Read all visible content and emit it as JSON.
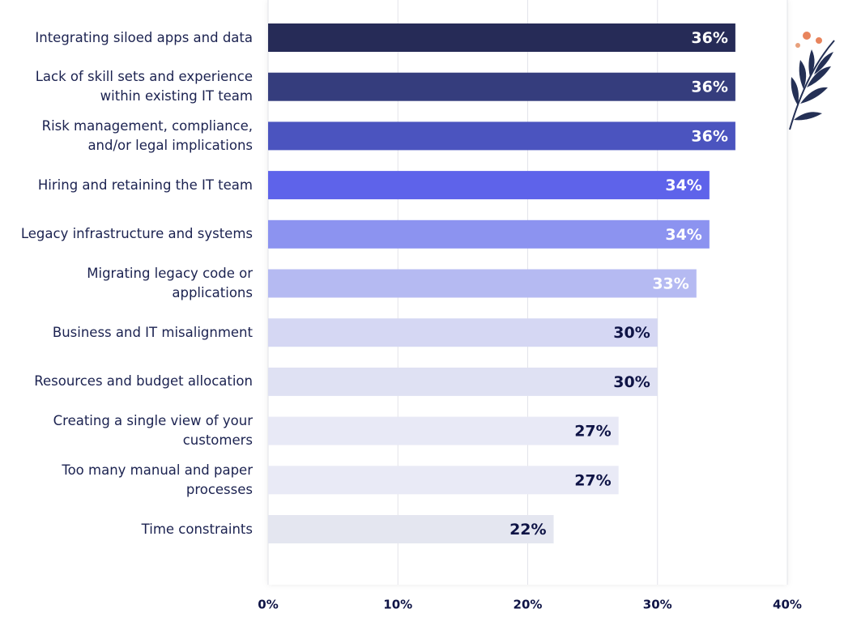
{
  "chart_data": {
    "type": "bar",
    "orientation": "horizontal",
    "categories": [
      "Integrating siloed apps and data",
      "Lack of skill sets and experience\nwithin existing IT team",
      "Risk management, compliance,\nand/or legal implications",
      "Hiring and retaining the IT team",
      "Legacy infrastructure and systems",
      "Migrating legacy code or\napplications",
      "Business and IT misalignment",
      "Resources and budget allocation",
      "Creating a single view of your\ncustomers",
      "Too many manual and paper\nprocesses",
      "Time constraints"
    ],
    "values": [
      36,
      36,
      36,
      34,
      34,
      33,
      30,
      30,
      27,
      27,
      22
    ],
    "value_labels": [
      "36%",
      "36%",
      "36%",
      "34%",
      "34%",
      "33%",
      "30%",
      "30%",
      "27%",
      "27%",
      "22%"
    ],
    "colors": [
      "#262b57",
      "#353d7d",
      "#4b54bf",
      "#5e63ea",
      "#8c93f0",
      "#b5baf2",
      "#d5d7f3",
      "#dfe1f3",
      "#e8e9f6",
      "#e9eaf6",
      "#e4e6f0"
    ],
    "xlim": [
      0,
      40
    ],
    "xticks": [
      {
        "value": 0,
        "label": "0%"
      },
      {
        "value": 10,
        "label": "10%"
      },
      {
        "value": 20,
        "label": "20%"
      },
      {
        "value": 30,
        "label": "30%"
      },
      {
        "value": 40,
        "label": "40%"
      }
    ],
    "grid": true
  }
}
